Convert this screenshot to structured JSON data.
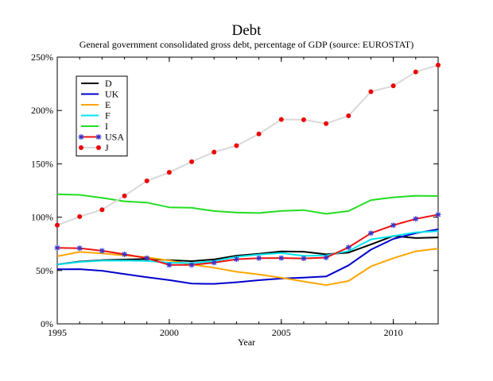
{
  "chart_data": {
    "type": "line",
    "title": "Debt",
    "subtitle": "General government consolidated gross debt, percentage of GDP (source: EUROSTAT)",
    "xlabel": "Year",
    "ylabel": "",
    "xlim": [
      1995,
      2012
    ],
    "ylim": [
      0,
      250
    ],
    "xticks": [
      1995,
      2000,
      2005,
      2010
    ],
    "xtick_labels": [
      "1995",
      "2000",
      "2005",
      "2010"
    ],
    "yticks": [
      0,
      50,
      100,
      150,
      200,
      250
    ],
    "ytick_labels": [
      "0%",
      "50%",
      "100%",
      "150%",
      "200%",
      "250%"
    ],
    "grid": false,
    "legend_position": "top-left",
    "x": [
      1995,
      1996,
      1997,
      1998,
      1999,
      2000,
      2001,
      2002,
      2003,
      2004,
      2005,
      2006,
      2007,
      2008,
      2009,
      2010,
      2011,
      2012
    ],
    "series": [
      {
        "name": "D",
        "color": "#000000",
        "marker": "none",
        "values": [
          55.6,
          58.4,
          59.7,
          60.3,
          60.9,
          59.7,
          58.8,
          60.4,
          63.9,
          65.7,
          67.9,
          67.6,
          65.2,
          66.8,
          74.5,
          82.4,
          80.4,
          81.0
        ]
      },
      {
        "name": "UK",
        "color": "#0000cc",
        "marker": "none",
        "values": [
          51.2,
          51.3,
          49.8,
          46.7,
          43.7,
          41.0,
          37.7,
          37.5,
          39.0,
          40.9,
          42.5,
          43.4,
          44.4,
          54.8,
          69.6,
          79.6,
          85.0,
          88.7
        ]
      },
      {
        "name": "E",
        "color": "#ffa500",
        "marker": "none",
        "values": [
          63.3,
          67.4,
          66.1,
          64.1,
          62.4,
          59.4,
          55.6,
          52.6,
          48.8,
          46.3,
          43.2,
          39.7,
          36.3,
          40.2,
          53.9,
          61.5,
          68.0,
          70.6
        ]
      },
      {
        "name": "F",
        "color": "#00e5ee",
        "marker": "none",
        "values": [
          55.5,
          58.0,
          59.2,
          59.4,
          58.9,
          57.3,
          56.9,
          58.8,
          62.9,
          64.9,
          66.4,
          63.7,
          64.2,
          68.2,
          79.2,
          82.3,
          85.8,
          86.9
        ]
      },
      {
        "name": "I",
        "color": "#22dd22",
        "marker": "none",
        "values": [
          121.5,
          120.9,
          118.1,
          114.9,
          113.7,
          109.2,
          108.8,
          105.7,
          104.4,
          103.9,
          105.9,
          106.6,
          103.1,
          105.7,
          116.0,
          118.6,
          120.1,
          119.8
        ]
      },
      {
        "name": "USA",
        "color": "#ee1111",
        "marker": "star",
        "marker_color": "#3333cc",
        "values": [
          71.3,
          70.9,
          68.5,
          65.2,
          61.6,
          55.2,
          55.2,
          57.4,
          60.6,
          61.6,
          61.7,
          61.3,
          62.1,
          71.7,
          85.0,
          92.4,
          98.4,
          102.4
        ]
      },
      {
        "name": "J",
        "color": "#d8d8d8",
        "marker": "circle",
        "marker_color": "#ee0000",
        "values": [
          92.5,
          100.5,
          107.0,
          120.0,
          134.0,
          142.0,
          152.0,
          161.0,
          167.0,
          178.0,
          191.6,
          191.3,
          187.7,
          195.0,
          217.6,
          223.1,
          236.1,
          242.6
        ]
      }
    ]
  }
}
